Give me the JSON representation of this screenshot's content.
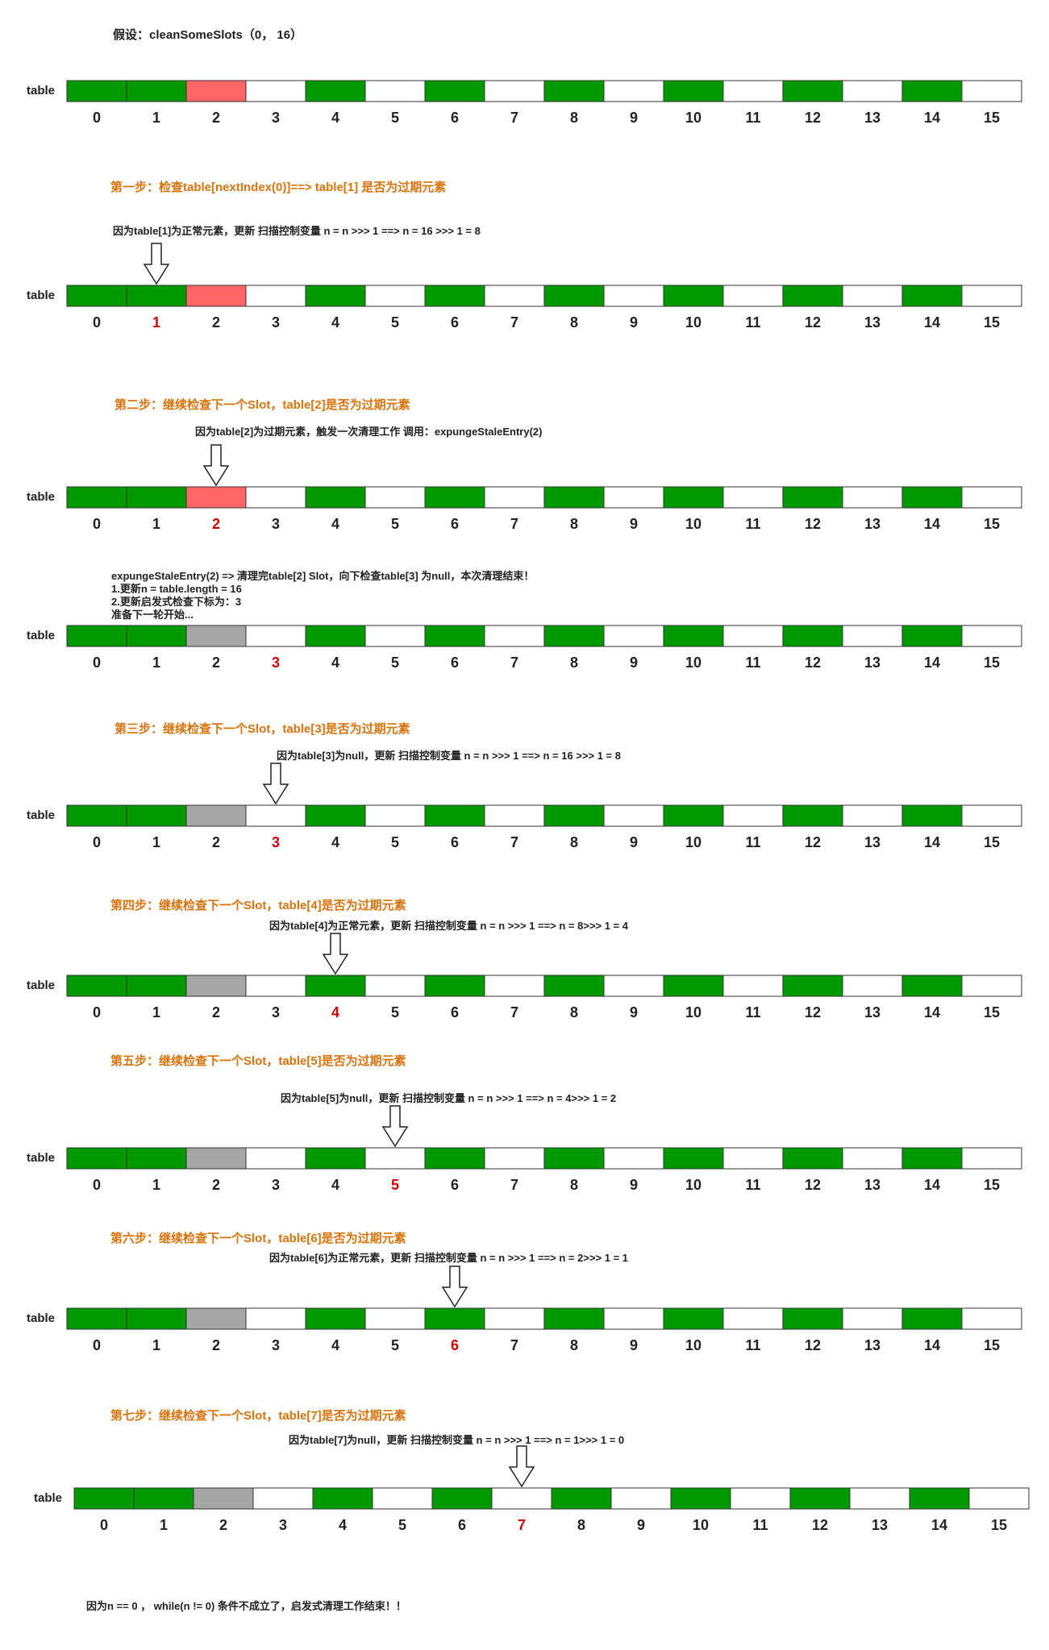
{
  "title": "假设：cleanSomeSlots（0， 16）",
  "table_label": "table",
  "indices": [
    "0",
    "1",
    "2",
    "3",
    "4",
    "5",
    "6",
    "7",
    "8",
    "9",
    "10",
    "11",
    "12",
    "13",
    "14",
    "15"
  ],
  "colors": {
    "normal": "#009900",
    "stale": "#ff6666",
    "cleared": "#a6a6a6",
    "empty": "#ffffff",
    "highlight": "#cc0000",
    "step_text": "#d9730d"
  },
  "rows": [
    {
      "slots": [
        "normal",
        "normal",
        "stale",
        "empty",
        "normal",
        "empty",
        "normal",
        "empty",
        "normal",
        "empty",
        "normal",
        "empty",
        "normal",
        "empty",
        "normal",
        "empty"
      ],
      "highlight": null,
      "arrow": null
    },
    {
      "heading": "第一步：检查table[nextIndex(0)]==> table[1] 是否为过期元素",
      "note": "因为table[1]为正常元素，更新 扫描控制变量 n = n >>> 1       ==>       n = 16 >>> 1 = 8",
      "slots": [
        "normal",
        "normal",
        "stale",
        "empty",
        "normal",
        "empty",
        "normal",
        "empty",
        "normal",
        "empty",
        "normal",
        "empty",
        "normal",
        "empty",
        "normal",
        "empty"
      ],
      "highlight": 1,
      "arrow": 1
    },
    {
      "heading": "第二步：继续检查下一个Slot，table[2]是否为过期元素",
      "note": "因为table[2]为过期元素，触发一次清理工作 调用：expungeStaleEntry(2)",
      "slots": [
        "normal",
        "normal",
        "stale",
        "empty",
        "normal",
        "empty",
        "normal",
        "empty",
        "normal",
        "empty",
        "normal",
        "empty",
        "normal",
        "empty",
        "normal",
        "empty"
      ],
      "highlight": 2,
      "arrow": 2
    },
    {
      "note_lines": [
        "expungeStaleEntry(2) => 清理完table[2] Slot，向下检查table[3] 为null，本次清理结束！",
        "1.更新n = table.length = 16",
        "2.更新启发式检查下标为：3",
        "准备下一轮开始..."
      ],
      "slots": [
        "normal",
        "normal",
        "cleared",
        "empty",
        "normal",
        "empty",
        "normal",
        "empty",
        "normal",
        "empty",
        "normal",
        "empty",
        "normal",
        "empty",
        "normal",
        "empty"
      ],
      "highlight": 3,
      "arrow": null
    },
    {
      "heading": "第三步：继续检查下一个Slot，table[3]是否为过期元素",
      "note": "因为table[3]为null，更新 扫描控制变量 n = n >>> 1       ==>       n = 16 >>> 1 = 8",
      "slots": [
        "normal",
        "normal",
        "cleared",
        "empty",
        "normal",
        "empty",
        "normal",
        "empty",
        "normal",
        "empty",
        "normal",
        "empty",
        "normal",
        "empty",
        "normal",
        "empty"
      ],
      "highlight": 3,
      "arrow": 3
    },
    {
      "heading": "第四步：继续检查下一个Slot，table[4]是否为过期元素",
      "note": "因为table[4]为正常元素，更新 扫描控制变量 n = n >>> 1       ==>       n = 8>>> 1 = 4",
      "slots": [
        "normal",
        "normal",
        "cleared",
        "empty",
        "normal",
        "empty",
        "normal",
        "empty",
        "normal",
        "empty",
        "normal",
        "empty",
        "normal",
        "empty",
        "normal",
        "empty"
      ],
      "highlight": 4,
      "arrow": 4
    },
    {
      "heading": "第五步：继续检查下一个Slot，table[5]是否为过期元素",
      "note": "因为table[5]为null，更新 扫描控制变量 n = n >>> 1       ==>       n = 4>>> 1 = 2",
      "slots": [
        "normal",
        "normal",
        "cleared",
        "empty",
        "normal",
        "empty",
        "normal",
        "empty",
        "normal",
        "empty",
        "normal",
        "empty",
        "normal",
        "empty",
        "normal",
        "empty"
      ],
      "highlight": 5,
      "arrow": 5
    },
    {
      "heading": "第六步：继续检查下一个Slot，table[6]是否为过期元素",
      "note": "因为table[6]为正常元素，更新 扫描控制变量 n = n >>> 1       ==>       n = 2>>> 1 = 1",
      "slots": [
        "normal",
        "normal",
        "cleared",
        "empty",
        "normal",
        "empty",
        "normal",
        "empty",
        "normal",
        "empty",
        "normal",
        "empty",
        "normal",
        "empty",
        "normal",
        "empty"
      ],
      "highlight": 6,
      "arrow": 6
    },
    {
      "heading": "第七步：继续检查下一个Slot，table[7]是否为过期元素",
      "note": "因为table[7]为null，更新 扫描控制变量 n = n >>> 1       ==>       n = 1>>> 1 = 0",
      "slots": [
        "normal",
        "normal",
        "cleared",
        "empty",
        "normal",
        "empty",
        "normal",
        "empty",
        "normal",
        "empty",
        "normal",
        "empty",
        "normal",
        "empty",
        "normal",
        "empty"
      ],
      "highlight": 7,
      "arrow": 7
    }
  ],
  "footer": "因为n == 0 ， while(n != 0) 条件不成立了，启发式清理工作结束！！"
}
